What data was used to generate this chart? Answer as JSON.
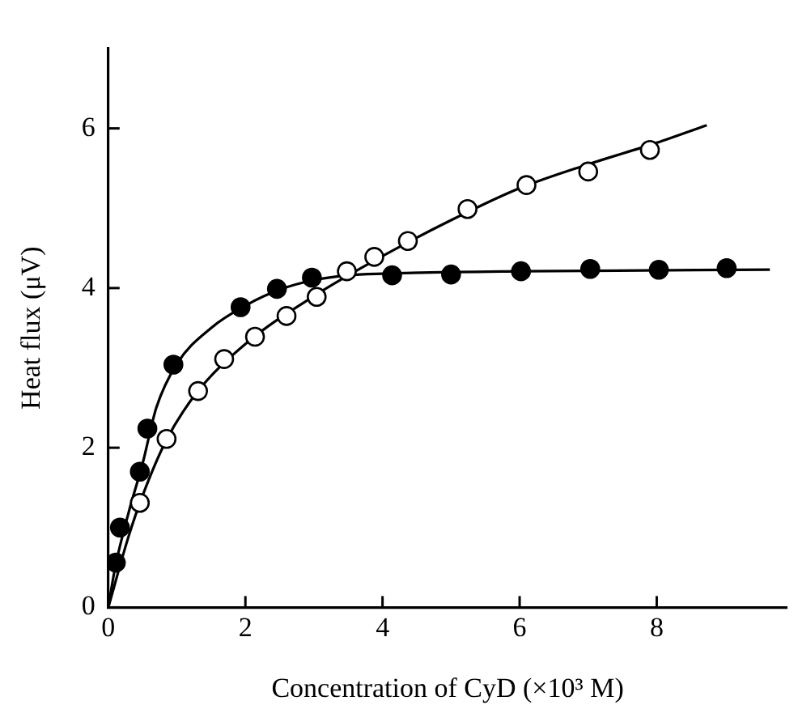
{
  "chart_data": {
    "type": "scatter",
    "xlabel": "Concentration of CyD (×10³ M)",
    "ylabel": "Heat flux (μV)",
    "xlim": [
      0,
      9.9
    ],
    "ylim": [
      0,
      7
    ],
    "xticks": [
      0,
      2,
      4,
      6,
      8
    ],
    "yticks": [
      0,
      2,
      4,
      6
    ],
    "grid": false,
    "legend": false,
    "marker": "circle",
    "series": [
      {
        "color": "#000000",
        "x": [
          0.11,
          0.17,
          0.46,
          0.57,
          0.95,
          1.93,
          2.46,
          2.97,
          4.14,
          5.0,
          6.02,
          7.03,
          8.03,
          9.02
        ],
        "values": [
          0.56,
          1.0,
          1.7,
          2.24,
          3.04,
          3.76,
          3.99,
          4.13,
          4.16,
          4.17,
          4.21,
          4.24,
          4.23,
          4.25
        ]
      },
      {
        "color": "#ffffff",
        "x": [
          0.46,
          0.85,
          1.31,
          1.69,
          2.14,
          2.6,
          3.04,
          3.48,
          3.88,
          4.37,
          5.24,
          6.1,
          7.0,
          7.9
        ],
        "values": [
          1.31,
          2.11,
          2.71,
          3.11,
          3.39,
          3.65,
          3.89,
          4.21,
          4.39,
          4.59,
          4.99,
          5.29,
          5.46,
          5.73
        ]
      },
      {
        "type": "line",
        "marker": "none",
        "color": "#000000",
        "x": [
          0,
          0.1,
          0.3,
          0.5,
          0.7,
          1,
          1.5,
          2,
          2.5,
          3,
          3.5,
          4,
          6,
          9.65
        ],
        "values": [
          0,
          0.5,
          1.2,
          1.8,
          2.5,
          3.05,
          3.5,
          3.78,
          3.98,
          4.1,
          4.16,
          4.18,
          4.21,
          4.23
        ]
      },
      {
        "type": "line",
        "marker": "none",
        "color": "#000000",
        "x": [
          0,
          0.3,
          0.5,
          0.85,
          1.3,
          2,
          3,
          4,
          5,
          6,
          7,
          8,
          8.73
        ],
        "values": [
          0,
          0.9,
          1.4,
          2.1,
          2.7,
          3.3,
          3.9,
          4.4,
          4.85,
          5.25,
          5.55,
          5.82,
          6.04
        ]
      }
    ]
  }
}
